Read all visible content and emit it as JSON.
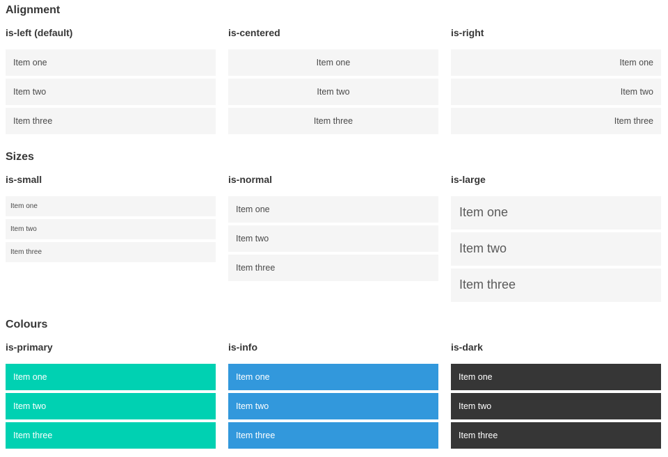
{
  "colors": {
    "primary": "#00d1b2",
    "info": "#3298dc",
    "dark": "#363636",
    "item_bg": "#f5f5f5",
    "item_text": "#4a4a4a",
    "item_text_on_color": "#ffffff",
    "heading_text": "#363636"
  },
  "sections": [
    {
      "title": "Alignment",
      "examples": [
        {
          "label": "is-left (default)",
          "variant": "left",
          "items": [
            "Item one",
            "Item two",
            "Item three"
          ]
        },
        {
          "label": "is-centered",
          "variant": "centered",
          "items": [
            "Item one",
            "Item two",
            "Item three"
          ]
        },
        {
          "label": "is-right",
          "variant": "right",
          "items": [
            "Item one",
            "Item two",
            "Item three"
          ]
        }
      ]
    },
    {
      "title": "Sizes",
      "examples": [
        {
          "label": "is-small",
          "variant": "small",
          "items": [
            "Item one",
            "Item two",
            "Item three"
          ]
        },
        {
          "label": "is-normal",
          "variant": "normal",
          "items": [
            "Item one",
            "Item two",
            "Item three"
          ]
        },
        {
          "label": "is-large",
          "variant": "large",
          "items": [
            "Item one",
            "Item two",
            "Item three"
          ]
        }
      ]
    },
    {
      "title": "Colours",
      "examples": [
        {
          "label": "is-primary",
          "variant": "primary",
          "items": [
            "Item one",
            "Item two",
            "Item three"
          ]
        },
        {
          "label": "is-info",
          "variant": "info",
          "items": [
            "Item one",
            "Item two",
            "Item three"
          ]
        },
        {
          "label": "is-dark",
          "variant": "dark",
          "items": [
            "Item one",
            "Item two",
            "Item three"
          ]
        }
      ]
    }
  ]
}
